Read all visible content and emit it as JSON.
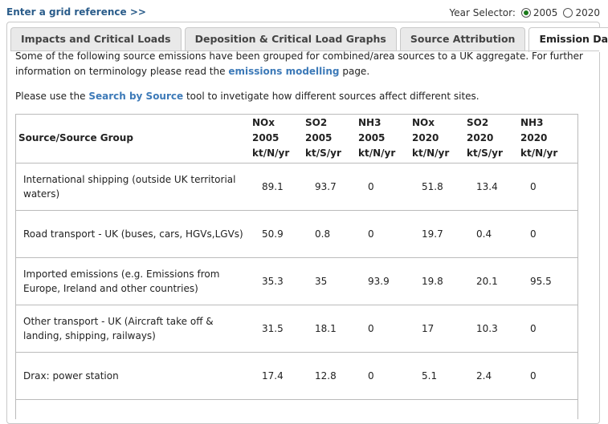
{
  "top": {
    "grid_link": "Enter a grid reference >>",
    "year_selector_label": "Year Selector:",
    "years": [
      {
        "label": "2005",
        "checked": true
      },
      {
        "label": "2020",
        "checked": false
      }
    ]
  },
  "tabs": [
    {
      "label": "Impacts and Critical Loads",
      "active": false
    },
    {
      "label": "Deposition & Critical Load Graphs",
      "active": false
    },
    {
      "label": "Source Attribution",
      "active": false
    },
    {
      "label": "Emission Data",
      "active": true
    }
  ],
  "intro": {
    "p1_before": "Some of the following source emissions have been grouped for combined/area sources to a UK aggregate. For further information on terminology please read the ",
    "p1_link": "emissions modelling",
    "p1_after": " page.",
    "p2_before": "Please use the ",
    "p2_link": "Search by Source",
    "p2_after": " tool to invetigate how different sources affect different sites."
  },
  "table": {
    "headers": [
      {
        "l1": "Source/Source Group",
        "l2": "",
        "l3": ""
      },
      {
        "l1": "NOx",
        "l2": "2005",
        "l3": "kt/N/yr"
      },
      {
        "l1": "SO2",
        "l2": "2005",
        "l3": "kt/S/yr"
      },
      {
        "l1": "NH3",
        "l2": "2005",
        "l3": "kt/N/yr"
      },
      {
        "l1": "NOx",
        "l2": "2020",
        "l3": "kt/N/yr"
      },
      {
        "l1": "SO2",
        "l2": "2020",
        "l3": "kt/S/yr"
      },
      {
        "l1": "NH3",
        "l2": "2020",
        "l3": "kt/N/yr"
      }
    ],
    "rows": [
      {
        "source": "International shipping (outside UK territorial waters)",
        "values": [
          "89.1",
          "93.7",
          "0",
          "51.8",
          "13.4",
          "0"
        ]
      },
      {
        "source": "Road transport - UK (buses, cars, HGVs,LGVs)",
        "values": [
          "50.9",
          "0.8",
          "0",
          "19.7",
          "0.4",
          "0"
        ]
      },
      {
        "source": "Imported emissions (e.g. Emissions from Europe, Ireland and other countries)",
        "values": [
          "35.3",
          "35",
          "93.9",
          "19.8",
          "20.1",
          "95.5"
        ]
      },
      {
        "source": "Other transport - UK (Aircraft take off & landing, shipping, railways)",
        "values": [
          "31.5",
          "18.1",
          "0",
          "17",
          "10.3",
          "0"
        ]
      },
      {
        "source": "Drax: power station",
        "values": [
          "17.4",
          "12.8",
          "0",
          "5.1",
          "2.4",
          "0"
        ]
      }
    ]
  }
}
